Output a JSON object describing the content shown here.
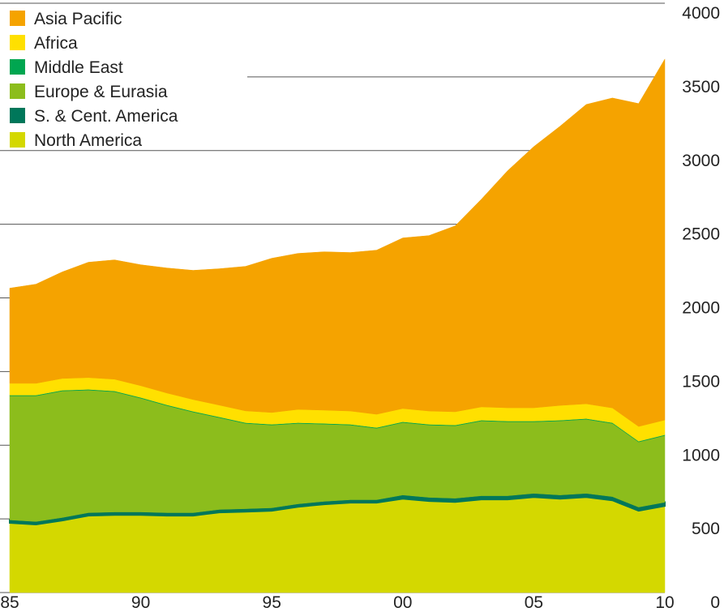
{
  "chart_data": {
    "type": "stacked_area",
    "categories": [
      "85",
      null,
      null,
      null,
      null,
      "90",
      null,
      null,
      null,
      null,
      "95",
      null,
      null,
      null,
      null,
      "00",
      null,
      null,
      null,
      null,
      "05",
      null,
      null,
      null,
      null,
      "10"
    ],
    "series": [
      {
        "name": "North America",
        "color": "#d4d800",
        "values": [
          473,
          462,
          489,
          522,
          527,
          527,
          522,
          522,
          544,
          549,
          555,
          582,
          599,
          610,
          610,
          637,
          621,
          615,
          632,
          632,
          648,
          637,
          648,
          626,
          555,
          588
        ]
      },
      {
        "name": "S. & Cent. America",
        "color": "#00775a",
        "values": [
          20,
          20,
          20,
          20,
          20,
          20,
          20,
          20,
          20,
          20,
          20,
          20,
          20,
          20,
          20,
          25,
          25,
          25,
          25,
          25,
          25,
          25,
          25,
          25,
          25,
          25
        ]
      },
      {
        "name": "Europe & Eurasia",
        "color": "#8cbd1c",
        "values": [
          842,
          853,
          859,
          832,
          816,
          772,
          727,
          683,
          623,
          579,
          562,
          546,
          524,
          507,
          485,
          492,
          491,
          492,
          508,
          502,
          486,
          503,
          503,
          497,
          442,
          453
        ]
      },
      {
        "name": "Middle East",
        "color": "#00a650",
        "values": [
          5,
          5,
          5,
          5,
          5,
          5,
          5,
          5,
          5,
          5,
          5,
          5,
          5,
          5,
          5,
          5,
          5,
          5,
          5,
          5,
          5,
          5,
          5,
          5,
          5,
          5
        ]
      },
      {
        "name": "Africa",
        "color": "#ffe000",
        "values": [
          80,
          80,
          80,
          80,
          80,
          80,
          80,
          80,
          80,
          80,
          80,
          90,
          90,
          90,
          90,
          90,
          90,
          90,
          90,
          90,
          90,
          100,
          100,
          100,
          100,
          100
        ]
      },
      {
        "name": "Asia Pacific",
        "color": "#f5a300",
        "values": [
          646,
          673,
          723,
          783,
          810,
          821,
          849,
          877,
          926,
          981,
          1047,
          1059,
          1075,
          1076,
          1114,
          1158,
          1191,
          1262,
          1410,
          1609,
          1773,
          1895,
          2032,
          2104,
          2192,
          2450
        ]
      }
    ],
    "ylim": [
      0,
      4000
    ],
    "yticks": [
      0,
      500,
      1000,
      1500,
      2000,
      2500,
      3000,
      3500,
      4000
    ],
    "grid": true
  }
}
